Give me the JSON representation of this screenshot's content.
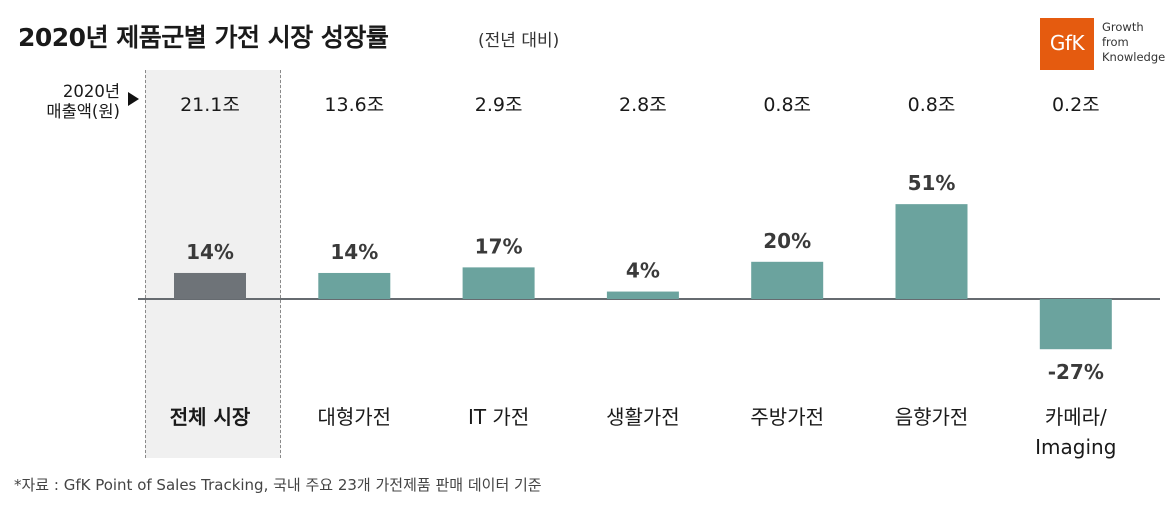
{
  "header": {
    "title": "2020년 제품군별 가전 시장 성장률",
    "subtitle": "(전년 대비)"
  },
  "logo": {
    "text": "GfK",
    "tagline": "Growth\nfrom\nKnowledge",
    "color": "#e55b0f"
  },
  "revenue_label": "2020년\n매출액(원)",
  "source": "*자료 : GfK Point of Sales Tracking, 국내 주요 23개 가전제품 판매 데이터 기준",
  "colors": {
    "total_bar": "#6e7378",
    "category_bar": "#6ba39e",
    "axis": "#666b70"
  },
  "chart_data": {
    "type": "bar",
    "title": "2020년 제품군별 가전 시장 성장률",
    "categories": [
      "전체 시장",
      "대형가전",
      "IT 가전",
      "생활가전",
      "주방가전",
      "음향가전",
      "카메라/\nImaging"
    ],
    "values": [
      14,
      14,
      17,
      4,
      20,
      51,
      -27
    ],
    "value_labels": [
      "14%",
      "14%",
      "17%",
      "4%",
      "20%",
      "51%",
      "-27%"
    ],
    "revenue": [
      "21.1조",
      "13.6조",
      "2.9조",
      "2.8조",
      "0.8조",
      "0.8조",
      "0.2조"
    ],
    "highlight_index": 0,
    "unit": "%",
    "ylim": [
      -30,
      55
    ],
    "grid": false
  }
}
